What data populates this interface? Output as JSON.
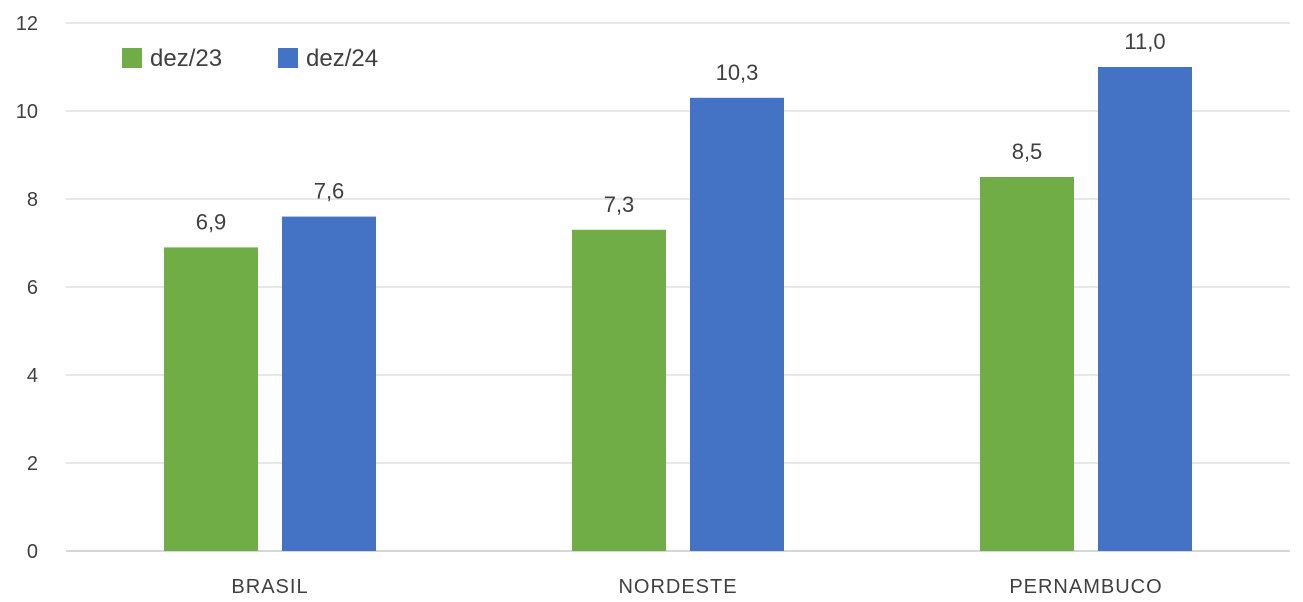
{
  "chart_data": {
    "type": "bar",
    "categories": [
      "BRASIL",
      "NORDESTE",
      "PERNAMBUCO"
    ],
    "series": [
      {
        "name": "dez/23",
        "values": [
          6.9,
          7.3,
          8.5
        ],
        "labels": [
          "6,9",
          "7,3",
          "8,5"
        ],
        "color": "#70AD47"
      },
      {
        "name": "dez/24",
        "values": [
          7.6,
          10.3,
          11.0
        ],
        "labels": [
          "7,6",
          "10,3",
          "11,0"
        ],
        "color": "#4472C4"
      }
    ],
    "ylim": [
      0,
      12
    ],
    "yticks": [
      "0",
      "2",
      "4",
      "6",
      "8",
      "10",
      "12"
    ],
    "grid": true,
    "legend_position": "top-left",
    "title": "",
    "xlabel": "",
    "ylabel": ""
  }
}
